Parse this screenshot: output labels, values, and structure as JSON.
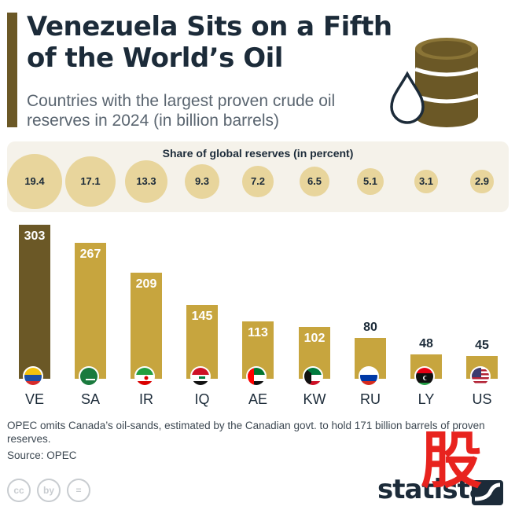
{
  "header": {
    "title": "Venezuela Sits on a Fifth of the World’s Oil",
    "subtitle": "Countries with the largest proven crude oil reserves in 2024 (in billion barrels)"
  },
  "share": {
    "title": "Share of global reserves (in percent)",
    "values": [
      "19.4",
      "17.1",
      "13.3",
      "9.3",
      "7.2",
      "6.5",
      "5.1",
      "3.1",
      "2.9"
    ]
  },
  "chart_data": {
    "type": "bar",
    "title": "Venezuela Sits on a Fifth of the World’s Oil",
    "subtitle": "Countries with the largest proven crude oil reserves in 2024 (in billion barrels)",
    "categories": [
      "VE",
      "SA",
      "IR",
      "IQ",
      "AE",
      "KW",
      "RU",
      "LY",
      "US"
    ],
    "values": [
      303,
      267,
      209,
      145,
      113,
      102,
      80,
      48,
      45
    ],
    "share_percent": [
      19.4,
      17.1,
      13.3,
      9.3,
      7.2,
      6.5,
      5.1,
      3.1,
      2.9
    ],
    "ylim": [
      0,
      303
    ],
    "grid": false,
    "colors": {
      "highlight": "#6b5826",
      "bar": "#c7a53e"
    }
  },
  "footer": {
    "note": "OPEC omits Canada’s oil-sands, estimated by the Canadian govt. to hold 171 billion barrels of proven reserves.",
    "source": "Source: OPEC",
    "logo": "statista",
    "cc_icons": [
      "cc",
      "by",
      "="
    ],
    "watermark": "股"
  }
}
